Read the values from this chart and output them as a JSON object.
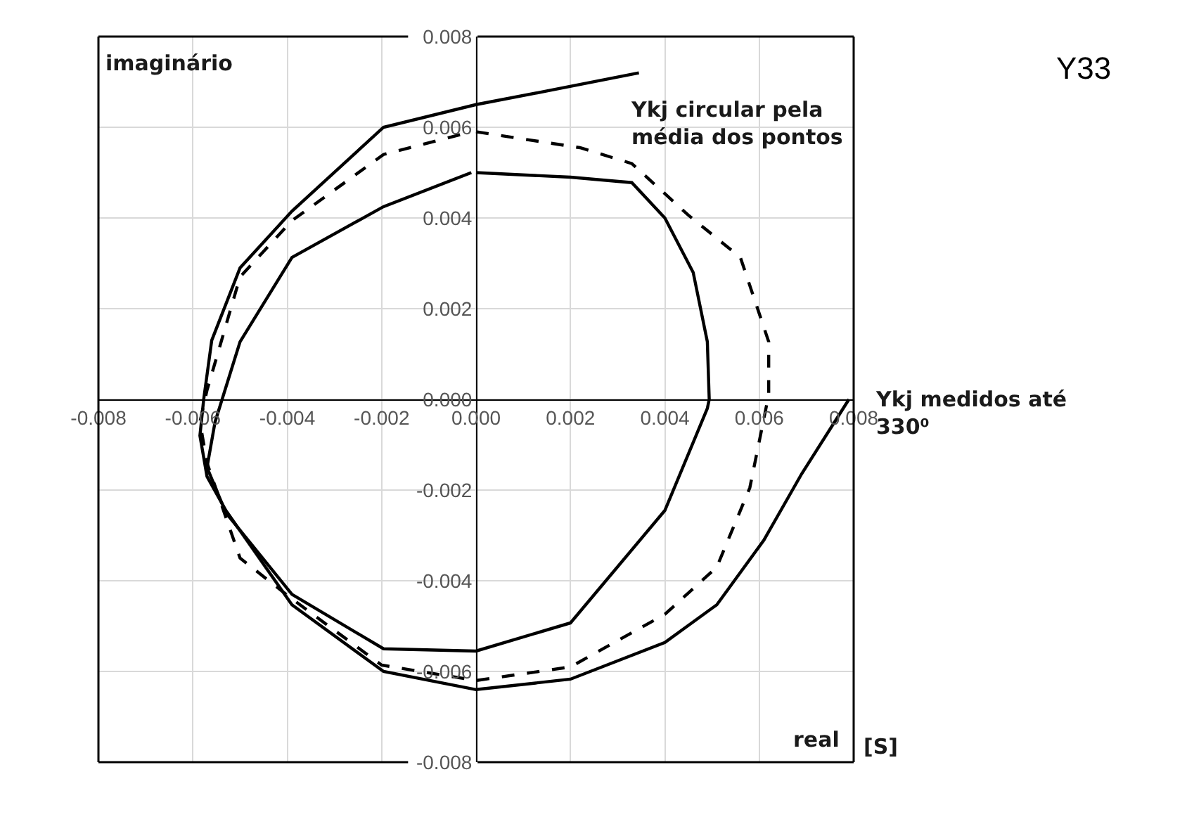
{
  "chart_data": {
    "type": "line",
    "title": "Y33",
    "xlabel": "real",
    "ylabel": "imaginário",
    "annotations": [
      "Ykj circular pela média dos pontos",
      "Ykj medidos até 330⁰",
      "[S]"
    ],
    "xlim": [
      -0.008,
      0.008
    ],
    "ylim": [
      -0.008,
      0.008
    ],
    "xticks": [
      {
        "value": -0.008,
        "label": "-0.008"
      },
      {
        "value": -0.006,
        "label": "-0.006"
      },
      {
        "value": -0.004,
        "label": "-0.004"
      },
      {
        "value": -0.002,
        "label": "-0.002"
      },
      {
        "value": 0,
        "label": "0.000"
      },
      {
        "value": 0.002,
        "label": "0.002"
      },
      {
        "value": 0.004,
        "label": "0.004"
      },
      {
        "value": 0.006,
        "label": "0.006"
      },
      {
        "value": 0.008,
        "label": "0.008"
      }
    ],
    "yticks": [
      {
        "value": -0.008,
        "label": "-0.008"
      },
      {
        "value": -0.006,
        "label": "-0.006"
      },
      {
        "value": -0.004,
        "label": "-0.004"
      },
      {
        "value": -0.002,
        "label": "-0.002"
      },
      {
        "value": 0,
        "label": "0.000"
      },
      {
        "value": 0.002,
        "label": "0.002"
      },
      {
        "value": 0.004,
        "label": "0.004"
      },
      {
        "value": 0.006,
        "label": "0.006"
      },
      {
        "value": 0.008,
        "label": "0.008"
      }
    ],
    "grid": true,
    "marker": "none",
    "series": [
      {
        "color": "#000000",
        "line_style": "solid",
        "x": [
          0.00345,
          0.0015,
          0.0,
          -0.00196,
          -0.0039,
          -0.005,
          -0.0056,
          -0.00577,
          -0.00585,
          -0.0057,
          -0.0053,
          -0.0039,
          -0.00196,
          0.0,
          0.002,
          0.004,
          0.0051,
          0.0061,
          0.0069,
          0.0079
        ],
        "values": [
          0.0072,
          0.0068,
          0.0065,
          0.006,
          0.00415,
          0.0029,
          0.0013,
          0.0,
          -0.0008,
          -0.0017,
          -0.00245,
          -0.00453,
          -0.006,
          -0.0064,
          -0.00617,
          -0.00536,
          -0.00453,
          -0.0031,
          -0.00164,
          0.0
        ]
      },
      {
        "color": "#000000",
        "line_style": "solid",
        "x": [
          0.0,
          0.002,
          0.0033,
          0.004,
          0.0046,
          0.0049,
          0.00494,
          0.0049,
          0.004,
          0.002,
          0.0,
          -0.00196,
          -0.0039,
          -0.0053,
          -0.0057,
          -0.00553,
          -0.005,
          -0.0039,
          -0.00196,
          -0.0001
        ],
        "values": [
          0.005,
          0.0049,
          0.00478,
          0.004,
          0.0028,
          0.00127,
          0.0,
          -0.0002,
          -0.00245,
          -0.00493,
          -0.00555,
          -0.0055,
          -0.0043,
          -0.0025,
          -0.0015,
          -0.0005,
          0.00127,
          0.00313,
          0.00425,
          0.005
        ]
      },
      {
        "color": "#000000",
        "line_style": "dashed",
        "x": [
          0.0,
          0.0022,
          0.0033,
          0.0045,
          0.0056,
          0.0062,
          0.0062,
          0.0058,
          0.0051,
          0.004,
          0.002,
          0.0,
          -0.002,
          -0.0039,
          -0.005,
          -0.0057,
          -0.00585,
          -0.0057,
          -0.005,
          -0.0039,
          -0.00196,
          -0.0001
        ],
        "values": [
          0.0059,
          0.00555,
          0.0052,
          0.00406,
          0.00313,
          0.00127,
          0.0001,
          -0.00195,
          -0.0037,
          -0.00474,
          -0.0059,
          -0.0062,
          -0.00586,
          -0.0044,
          -0.0035,
          -0.0014,
          -0.0005,
          0.0002,
          0.0027,
          0.00394,
          0.0054,
          0.0059
        ]
      }
    ]
  }
}
